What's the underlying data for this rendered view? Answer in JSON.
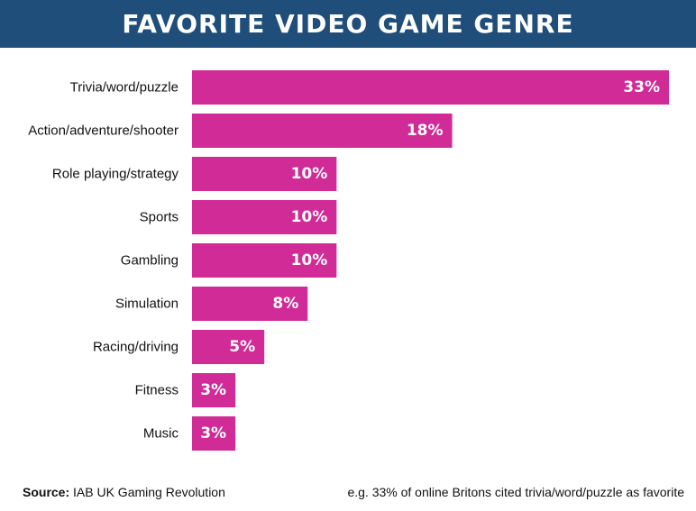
{
  "colors": {
    "header_bg": "#1e4e79",
    "bar": "#d02b96",
    "bar_label": "#ffffff",
    "category_label": "#111111"
  },
  "chart_data": {
    "type": "bar",
    "orientation": "horizontal",
    "title": "FAVORITE VIDEO GAME GENRE",
    "categories": [
      "Trivia/word/puzzle",
      "Action/adventure/shooter",
      "Role playing/strategy",
      "Sports",
      "Gambling",
      "Simulation",
      "Racing/driving",
      "Fitness",
      "Music"
    ],
    "values": [
      33,
      18,
      10,
      10,
      10,
      8,
      5,
      3,
      3
    ],
    "value_labels": [
      "33%",
      "18%",
      "10%",
      "10%",
      "10%",
      "8%",
      "5%",
      "3%",
      "3%"
    ],
    "unit": "%",
    "xlim": [
      0,
      33
    ],
    "grid": false,
    "legend": "none"
  },
  "footer": {
    "source_label": "Source:",
    "source_text": "IAB UK Gaming Revolution",
    "note": "e.g. 33% of online Britons cited trivia/word/puzzle as favorite"
  }
}
